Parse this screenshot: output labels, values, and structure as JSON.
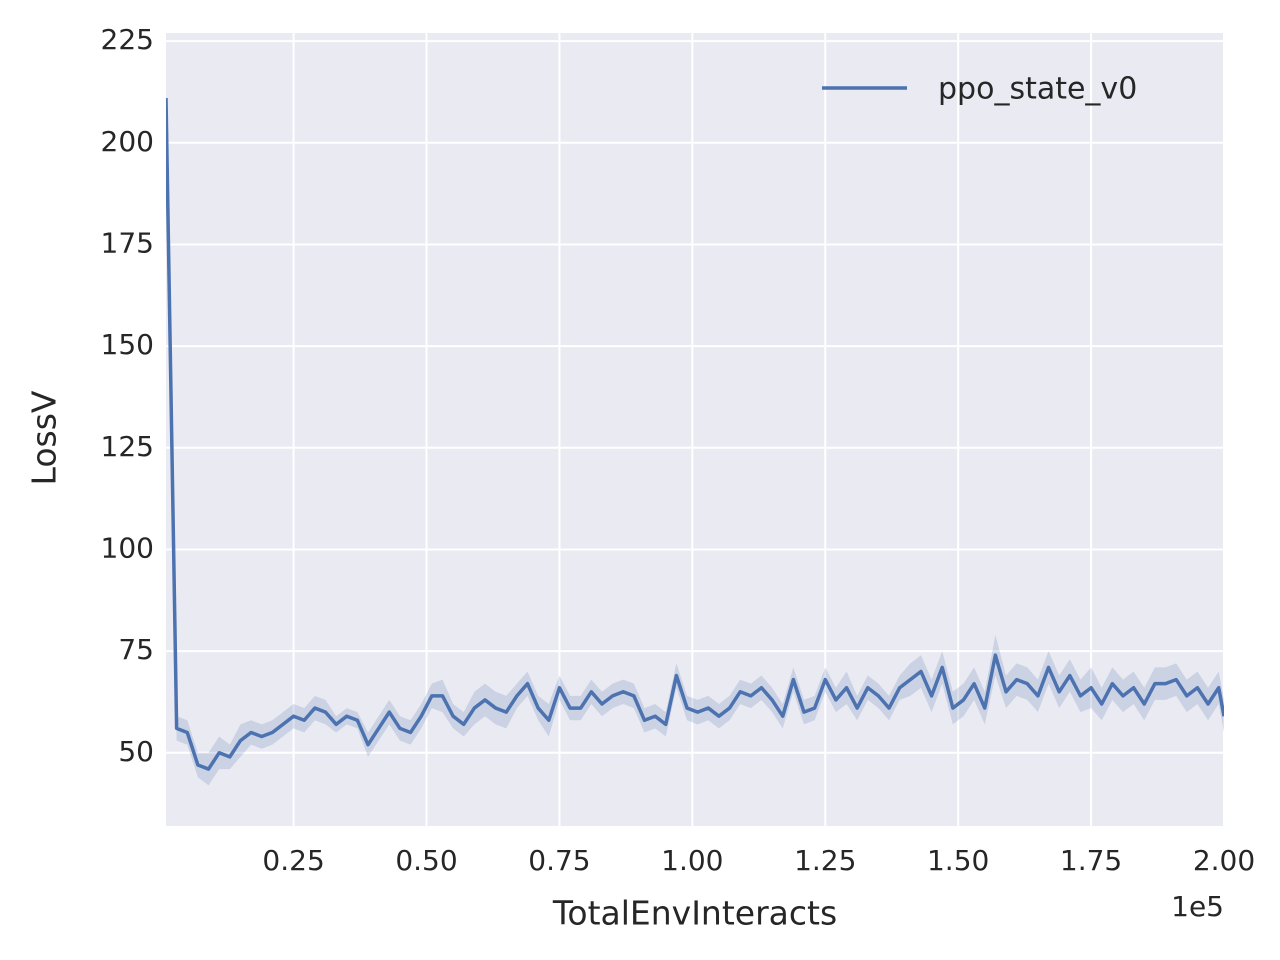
{
  "chart_data": {
    "type": "line",
    "x_label": "TotalEnvInteracts",
    "y_label": "LossV",
    "x_offset_label": "1e5",
    "x": [
      0.01,
      0.03,
      0.05,
      0.07,
      0.09,
      0.11,
      0.13,
      0.15,
      0.17,
      0.19,
      0.21,
      0.23,
      0.25,
      0.27,
      0.29,
      0.31,
      0.33,
      0.35,
      0.37,
      0.39,
      0.41,
      0.43,
      0.45,
      0.47,
      0.49,
      0.51,
      0.53,
      0.55,
      0.57,
      0.59,
      0.61,
      0.63,
      0.65,
      0.67,
      0.69,
      0.71,
      0.73,
      0.75,
      0.77,
      0.79,
      0.81,
      0.83,
      0.85,
      0.87,
      0.89,
      0.91,
      0.93,
      0.95,
      0.97,
      0.99,
      1.01,
      1.03,
      1.05,
      1.07,
      1.09,
      1.11,
      1.13,
      1.15,
      1.17,
      1.19,
      1.21,
      1.23,
      1.25,
      1.27,
      1.29,
      1.31,
      1.33,
      1.35,
      1.37,
      1.39,
      1.41,
      1.43,
      1.45,
      1.47,
      1.49,
      1.51,
      1.53,
      1.55,
      1.57,
      1.59,
      1.61,
      1.63,
      1.65,
      1.67,
      1.69,
      1.71,
      1.73,
      1.75,
      1.77,
      1.79,
      1.81,
      1.83,
      1.85,
      1.87,
      1.89,
      1.91,
      1.93,
      1.95,
      1.97,
      1.99,
      2.0
    ],
    "series": [
      {
        "name": "ppo_state_v0",
        "color": "#4c72b0",
        "values": [
          211,
          56,
          55,
          47,
          46,
          50,
          49,
          53,
          55,
          54,
          55,
          57,
          59,
          58,
          61,
          60,
          57,
          59,
          58,
          52,
          56,
          60,
          56,
          55,
          59,
          64,
          64,
          59,
          57,
          61,
          63,
          61,
          60,
          64,
          67,
          61,
          58,
          66,
          61,
          61,
          65,
          62,
          64,
          65,
          64,
          58,
          59,
          57,
          69,
          61,
          60,
          61,
          59,
          61,
          65,
          64,
          66,
          63,
          59,
          68,
          60,
          61,
          68,
          63,
          66,
          61,
          66,
          64,
          61,
          66,
          68,
          70,
          64,
          71,
          61,
          63,
          67,
          61,
          74,
          65,
          68,
          67,
          64,
          71,
          65,
          69,
          64,
          66,
          62,
          67,
          64,
          66,
          62,
          67,
          67,
          68,
          64,
          66,
          62,
          66,
          59
        ],
        "errors": [
          0,
          3,
          3,
          3,
          4,
          4,
          3,
          4,
          3,
          3,
          3,
          3,
          3,
          3,
          3,
          3,
          2,
          2,
          2,
          3,
          3,
          3,
          3,
          3,
          3,
          3,
          4,
          3,
          3,
          4,
          4,
          4,
          4,
          3,
          3,
          3,
          4,
          3,
          3,
          3,
          3,
          3,
          3,
          3,
          3,
          3,
          3,
          3,
          3,
          3,
          3,
          3,
          3,
          3,
          3,
          3,
          3,
          3,
          3,
          3,
          3,
          3,
          3,
          3,
          4,
          3,
          3,
          3,
          3,
          3,
          4,
          4,
          4,
          4,
          4,
          4,
          4,
          4,
          5,
          4,
          4,
          4,
          4,
          4,
          4,
          4,
          4,
          5,
          4,
          4,
          4,
          4,
          4,
          4,
          4,
          4,
          4,
          4,
          4,
          4,
          4
        ]
      }
    ],
    "xlim": [
      0.01,
      2.0
    ],
    "ylim": [
      32,
      227
    ],
    "xticks": [
      {
        "value": 0.25,
        "label": "0.25"
      },
      {
        "value": 0.5,
        "label": "0.50"
      },
      {
        "value": 0.75,
        "label": "0.75"
      },
      {
        "value": 1,
        "label": "1.00"
      },
      {
        "value": 1.25,
        "label": "1.25"
      },
      {
        "value": 1.5,
        "label": "1.50"
      },
      {
        "value": 1.75,
        "label": "1.75"
      },
      {
        "value": 2,
        "label": "2.00"
      }
    ],
    "yticks": [
      50,
      75,
      100,
      125,
      150,
      175,
      200,
      225
    ],
    "grid": true,
    "background": "#eaeaf2",
    "legend": "upper-right"
  }
}
